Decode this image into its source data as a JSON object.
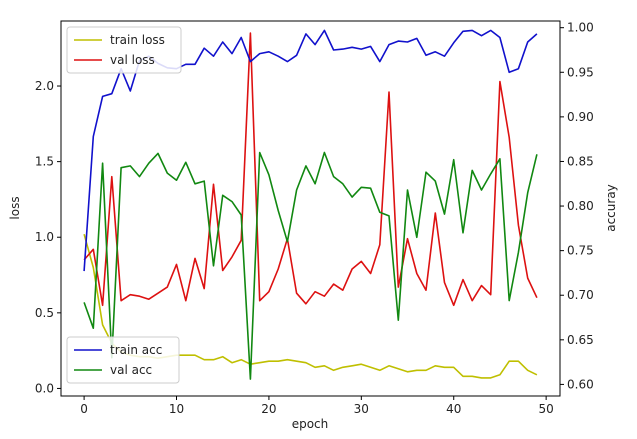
{
  "chart_data": {
    "type": "line",
    "xlabel": "epoch",
    "ylabel_left": "loss",
    "ylabel_right": "accuray",
    "x_ticks": [
      0,
      10,
      20,
      30,
      40,
      50
    ],
    "xlim": [
      -2.5,
      51.5
    ],
    "left_axis": {
      "ylim": [
        -0.05,
        2.43
      ],
      "ticks": [
        "0.0",
        "0.5",
        "1.0",
        "1.5",
        "2.0"
      ],
      "tick_values": [
        0,
        0.5,
        1.0,
        1.5,
        2.0
      ]
    },
    "right_axis": {
      "ylim": [
        0.587,
        1.0075
      ],
      "ticks": [
        "0.60",
        "0.65",
        "0.70",
        "0.75",
        "0.80",
        "0.85",
        "0.90",
        "0.95",
        "1.00"
      ],
      "tick_values": [
        0.6,
        0.65,
        0.7,
        0.75,
        0.8,
        0.85,
        0.9,
        0.95,
        1.0
      ]
    },
    "x": [
      0,
      1,
      2,
      3,
      4,
      5,
      6,
      7,
      8,
      9,
      10,
      11,
      12,
      13,
      14,
      15,
      16,
      17,
      18,
      19,
      20,
      21,
      22,
      23,
      24,
      25,
      26,
      27,
      28,
      29,
      30,
      31,
      32,
      33,
      34,
      35,
      36,
      37,
      38,
      39,
      40,
      41,
      42,
      43,
      44,
      45,
      46,
      47,
      48,
      49
    ],
    "series": [
      {
        "name": "train loss",
        "axis": "left",
        "color": "#bfbf00",
        "values": [
          1.02,
          0.8,
          0.42,
          0.3,
          0.24,
          0.22,
          0.21,
          0.21,
          0.2,
          0.21,
          0.22,
          0.22,
          0.22,
          0.19,
          0.19,
          0.21,
          0.17,
          0.19,
          0.16,
          0.17,
          0.18,
          0.18,
          0.19,
          0.18,
          0.17,
          0.14,
          0.15,
          0.12,
          0.14,
          0.15,
          0.16,
          0.14,
          0.12,
          0.15,
          0.13,
          0.11,
          0.12,
          0.12,
          0.15,
          0.14,
          0.14,
          0.08,
          0.08,
          0.07,
          0.07,
          0.09,
          0.18,
          0.18,
          0.12,
          0.09
        ]
      },
      {
        "name": "val loss",
        "axis": "left",
        "color": "#dd1111",
        "values": [
          0.85,
          0.92,
          0.55,
          1.4,
          0.58,
          0.62,
          0.61,
          0.59,
          0.63,
          0.67,
          0.82,
          0.58,
          0.86,
          0.66,
          1.35,
          0.78,
          0.87,
          0.98,
          2.35,
          0.58,
          0.64,
          0.79,
          0.99,
          0.63,
          0.56,
          0.64,
          0.61,
          0.69,
          0.65,
          0.79,
          0.84,
          0.76,
          0.95,
          1.96,
          0.67,
          0.99,
          0.76,
          0.65,
          1.16,
          0.7,
          0.55,
          0.72,
          0.58,
          0.68,
          0.62,
          2.03,
          1.66,
          1.08,
          0.73,
          0.6
        ]
      },
      {
        "name": "train acc",
        "axis": "right",
        "color": "#1111cc",
        "values": [
          0.727,
          0.878,
          0.923,
          0.926,
          0.954,
          0.929,
          0.963,
          0.968,
          0.96,
          0.955,
          0.954,
          0.959,
          0.959,
          0.977,
          0.968,
          0.984,
          0.971,
          0.989,
          0.962,
          0.971,
          0.973,
          0.968,
          0.962,
          0.969,
          0.993,
          0.981,
          0.997,
          0.975,
          0.976,
          0.978,
          0.976,
          0.979,
          0.962,
          0.981,
          0.985,
          0.984,
          0.988,
          0.969,
          0.973,
          0.968,
          0.983,
          0.996,
          0.997,
          0.991,
          0.997,
          0.989,
          0.95,
          0.954,
          0.984,
          0.993
        ]
      },
      {
        "name": "val acc",
        "axis": "right",
        "color": "#118811",
        "values": [
          0.692,
          0.663,
          0.848,
          0.63,
          0.843,
          0.845,
          0.833,
          0.848,
          0.859,
          0.837,
          0.829,
          0.849,
          0.825,
          0.828,
          0.733,
          0.812,
          0.805,
          0.79,
          0.606,
          0.86,
          0.835,
          0.795,
          0.76,
          0.818,
          0.845,
          0.825,
          0.86,
          0.833,
          0.825,
          0.81,
          0.821,
          0.82,
          0.793,
          0.789,
          0.672,
          0.818,
          0.765,
          0.838,
          0.828,
          0.791,
          0.852,
          0.77,
          0.84,
          0.818,
          0.836,
          0.853,
          0.694,
          0.748,
          0.815,
          0.858
        ]
      }
    ],
    "legends": [
      {
        "placement": "top-left",
        "entries": [
          "train loss",
          "val loss"
        ]
      },
      {
        "placement": "bottom-left",
        "entries": [
          "train acc",
          "val acc"
        ]
      }
    ]
  }
}
